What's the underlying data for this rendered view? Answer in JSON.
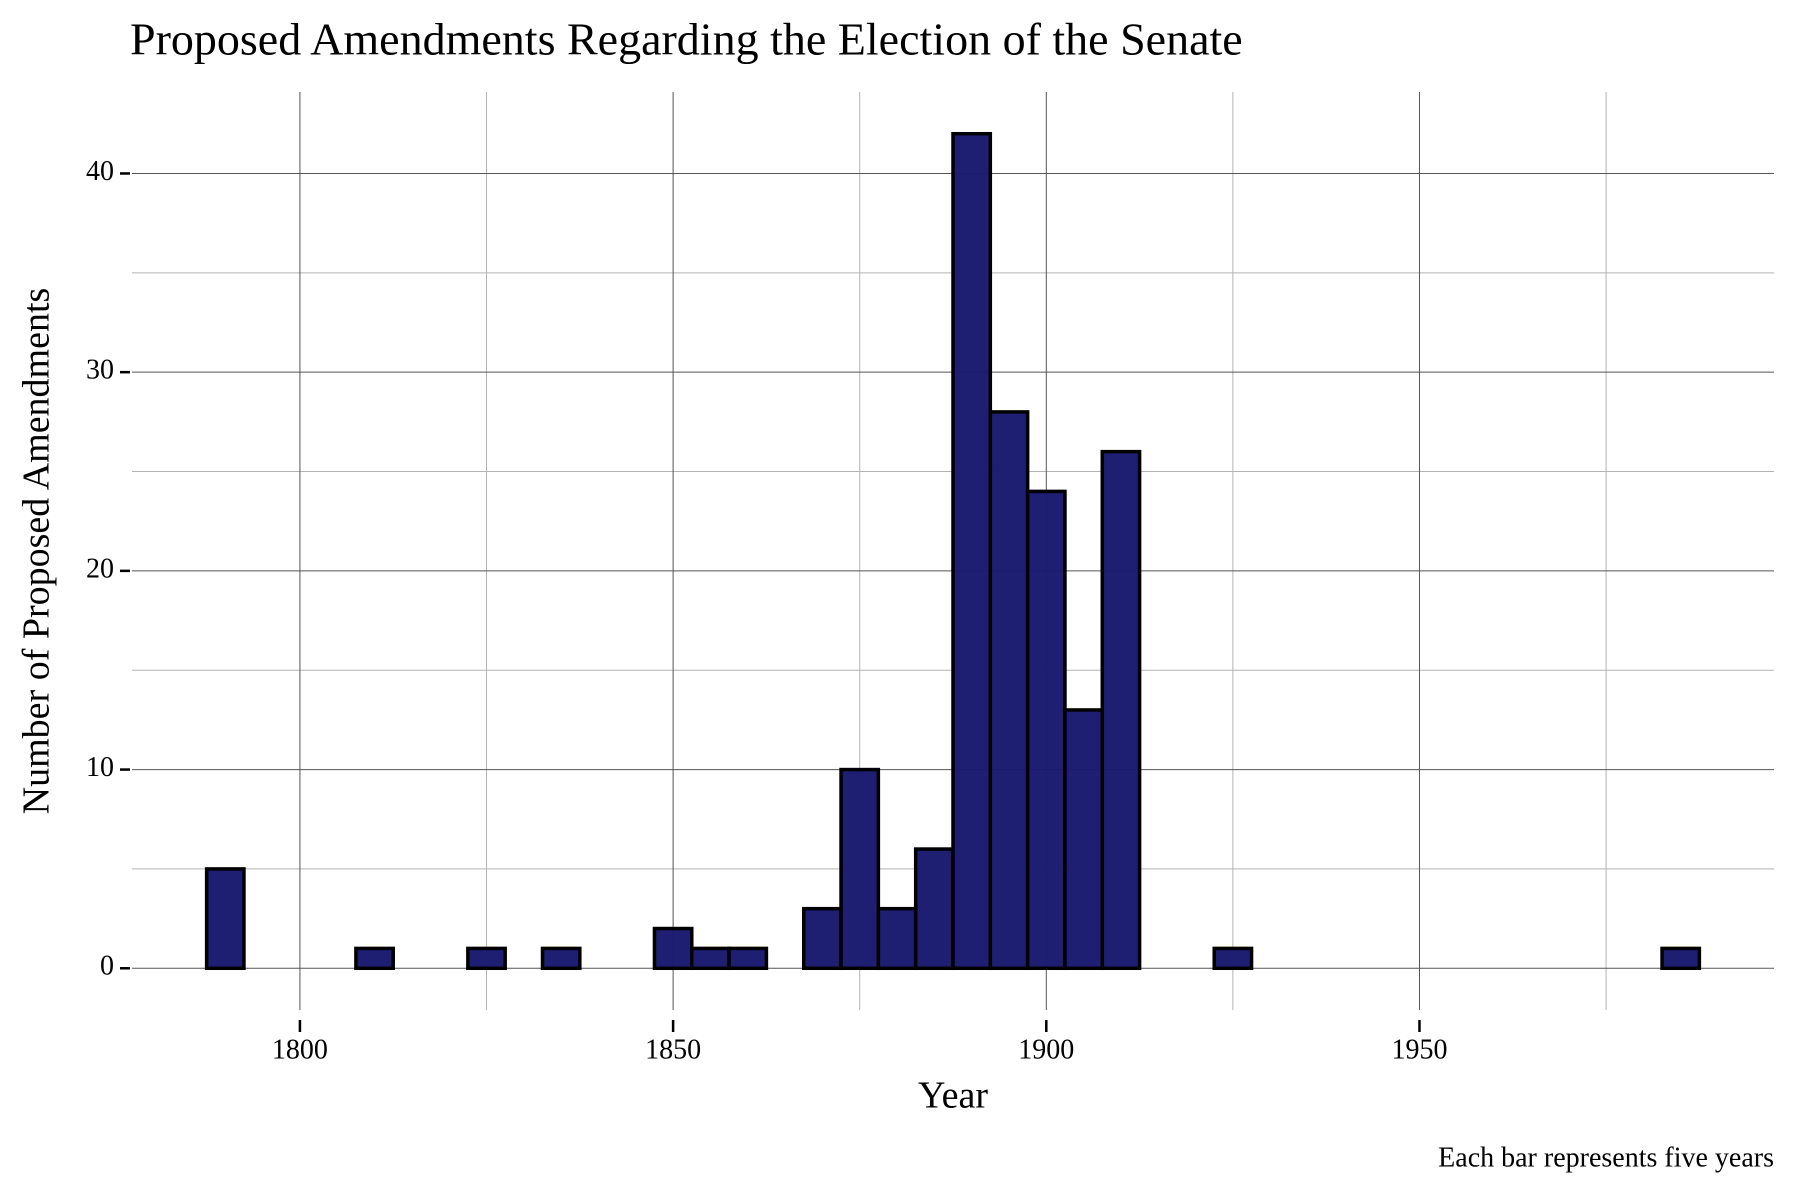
{
  "chart_data": {
    "type": "histogram",
    "title": "Proposed Amendments Regarding the Election of the Senate",
    "x_label": "Year",
    "y_label": "Number of Proposed Amendments",
    "caption": "Each bar represents five years",
    "bins": [
      1787.5,
      1792.5,
      1797.5,
      1802.5,
      1807.5,
      1812.5,
      1817.5,
      1822.5,
      1827.5,
      1832.5,
      1837.5,
      1842.5,
      1847.5,
      1852.5,
      1857.5,
      1862.5,
      1867.5,
      1872.5,
      1877.5,
      1882.5,
      1887.5,
      1892.5,
      1897.5,
      1902.5,
      1907.5,
      1912.5,
      1917.5,
      1922.5,
      1927.5,
      1932.5,
      1937.5,
      1942.5,
      1947.5,
      1952.5,
      1957.5,
      1962.5,
      1967.5,
      1972.5,
      1977.5,
      1982.5,
      1987.5
    ],
    "counts": [
      5,
      0,
      0,
      0,
      1,
      0,
      0,
      1,
      0,
      1,
      0,
      0,
      2,
      1,
      1,
      0,
      3,
      10,
      3,
      6,
      42,
      28,
      24,
      13,
      26,
      0,
      0,
      1,
      0,
      0,
      0,
      0,
      0,
      0,
      0,
      0,
      0,
      0,
      0,
      1
    ],
    "color": "#191970",
    "edge_color": "#000000",
    "xlim": [
      1777.5,
      1997.5
    ],
    "xticks": [
      1800,
      1850,
      1900,
      1950
    ],
    "minor_xticks": [
      1825,
      1875,
      1925,
      1975
    ],
    "ylim": [
      -2.1,
      44.1
    ],
    "yticks": [
      0,
      10,
      20,
      30,
      40
    ],
    "minor_yticks": [
      5,
      15,
      25,
      35
    ],
    "grid": true
  }
}
